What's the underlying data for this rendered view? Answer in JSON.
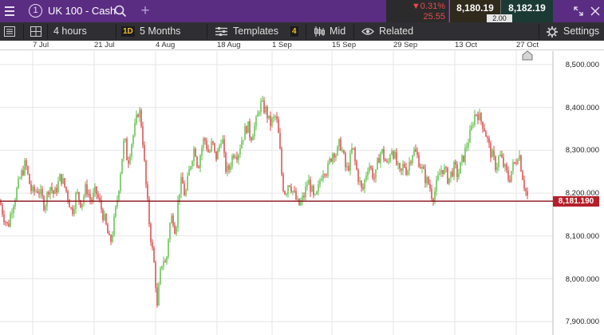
{
  "header": {
    "tab_number": "1",
    "instrument": "UK 100 - Cash",
    "change_pct": "▼0.31%",
    "change_abs": "25.55",
    "sell_price": "8,180.19",
    "buy_price": "8,182.19",
    "spread": "2.00"
  },
  "toolbar": {
    "interval": "4 hours",
    "period_badge": "1D",
    "period": "5 Months",
    "templates": "Templates",
    "templates_count": "4",
    "price_type": "Mid",
    "related": "Related",
    "settings": "Settings"
  },
  "chart_data": {
    "type": "candlestick",
    "x_labels": [
      "7 Jul",
      "21 Jul",
      "4 Aug",
      "18 Aug",
      "1 Sep",
      "15 Sep",
      "29 Sep",
      "13 Oct",
      "27 Oct"
    ],
    "y_ticks": [
      "8,500.000",
      "8,400.000",
      "8,300.000",
      "8,200.000",
      "8,100.000",
      "8,000.000",
      "7,900.000"
    ],
    "y_tick_values": [
      8500,
      8400,
      8300,
      8200,
      8100,
      8000,
      7900
    ],
    "current_price": "8,181.190",
    "current_value": 8181.19,
    "path_points": [
      [
        0,
        8180
      ],
      [
        4,
        8150
      ],
      [
        10,
        8120
      ],
      [
        14,
        8160
      ],
      [
        20,
        8200
      ],
      [
        26,
        8240
      ],
      [
        32,
        8270
      ],
      [
        36,
        8230
      ],
      [
        40,
        8200
      ],
      [
        48,
        8210
      ],
      [
        56,
        8170
      ],
      [
        62,
        8220
      ],
      [
        68,
        8195
      ],
      [
        76,
        8240
      ],
      [
        84,
        8200
      ],
      [
        90,
        8155
      ],
      [
        96,
        8200
      ],
      [
        102,
        8175
      ],
      [
        108,
        8215
      ],
      [
        114,
        8180
      ],
      [
        120,
        8205
      ],
      [
        126,
        8170
      ],
      [
        132,
        8130
      ],
      [
        138,
        8080
      ],
      [
        142,
        8120
      ],
      [
        148,
        8200
      ],
      [
        152,
        8270
      ],
      [
        156,
        8330
      ],
      [
        160,
        8270
      ],
      [
        164,
        8310
      ],
      [
        170,
        8360
      ],
      [
        174,
        8400
      ],
      [
        178,
        8350
      ],
      [
        182,
        8240
      ],
      [
        186,
        8150
      ],
      [
        190,
        8080
      ],
      [
        194,
        8020
      ],
      [
        197,
        7930
      ],
      [
        200,
        8000
      ],
      [
        204,
        8050
      ],
      [
        208,
        8030
      ],
      [
        212,
        8120
      ],
      [
        216,
        8150
      ],
      [
        220,
        8110
      ],
      [
        224,
        8200
      ],
      [
        228,
        8230
      ],
      [
        232,
        8190
      ],
      [
        236,
        8240
      ],
      [
        240,
        8280
      ],
      [
        244,
        8310
      ],
      [
        248,
        8260
      ],
      [
        252,
        8300
      ],
      [
        256,
        8330
      ],
      [
        262,
        8290
      ],
      [
        266,
        8320
      ],
      [
        270,
        8280
      ],
      [
        274,
        8300
      ],
      [
        278,
        8340
      ],
      [
        282,
        8260
      ],
      [
        286,
        8250
      ],
      [
        290,
        8280
      ],
      [
        294,
        8300
      ],
      [
        298,
        8290
      ],
      [
        302,
        8320
      ],
      [
        306,
        8340
      ],
      [
        310,
        8360
      ],
      [
        314,
        8330
      ],
      [
        318,
        8350
      ],
      [
        322,
        8370
      ],
      [
        326,
        8410
      ],
      [
        330,
        8400
      ],
      [
        334,
        8390
      ],
      [
        338,
        8360
      ],
      [
        342,
        8370
      ],
      [
        346,
        8380
      ],
      [
        350,
        8320
      ],
      [
        354,
        8220
      ],
      [
        358,
        8200
      ],
      [
        362,
        8230
      ],
      [
        366,
        8210
      ],
      [
        370,
        8190
      ],
      [
        374,
        8170
      ],
      [
        378,
        8180
      ],
      [
        382,
        8200
      ],
      [
        386,
        8230
      ],
      [
        390,
        8210
      ],
      [
        394,
        8180
      ],
      [
        398,
        8200
      ],
      [
        402,
        8240
      ],
      [
        406,
        8260
      ],
      [
        410,
        8250
      ],
      [
        414,
        8280
      ],
      [
        418,
        8300
      ],
      [
        422,
        8290
      ],
      [
        426,
        8320
      ],
      [
        430,
        8290
      ],
      [
        434,
        8250
      ],
      [
        438,
        8270
      ],
      [
        442,
        8310
      ],
      [
        446,
        8260
      ],
      [
        450,
        8230
      ],
      [
        454,
        8200
      ],
      [
        458,
        8240
      ],
      [
        462,
        8270
      ],
      [
        466,
        8250
      ],
      [
        470,
        8230
      ],
      [
        474,
        8280
      ],
      [
        478,
        8300
      ],
      [
        482,
        8280
      ],
      [
        486,
        8260
      ],
      [
        490,
        8310
      ],
      [
        494,
        8290
      ],
      [
        498,
        8260
      ],
      [
        502,
        8240
      ],
      [
        506,
        8270
      ],
      [
        510,
        8250
      ],
      [
        514,
        8280
      ],
      [
        518,
        8300
      ],
      [
        522,
        8290
      ],
      [
        526,
        8270
      ],
      [
        530,
        8250
      ],
      [
        534,
        8230
      ],
      [
        538,
        8220
      ],
      [
        542,
        8190
      ],
      [
        546,
        8210
      ],
      [
        550,
        8240
      ],
      [
        554,
        8260
      ],
      [
        558,
        8250
      ],
      [
        562,
        8230
      ],
      [
        566,
        8250
      ],
      [
        570,
        8260
      ],
      [
        574,
        8240
      ],
      [
        578,
        8270
      ],
      [
        582,
        8290
      ],
      [
        586,
        8320
      ],
      [
        590,
        8340
      ],
      [
        594,
        8380
      ],
      [
        598,
        8390
      ],
      [
        602,
        8370
      ],
      [
        606,
        8360
      ],
      [
        610,
        8330
      ],
      [
        614,
        8300
      ],
      [
        618,
        8280
      ],
      [
        622,
        8260
      ],
      [
        626,
        8290
      ],
      [
        630,
        8270
      ],
      [
        634,
        8250
      ],
      [
        638,
        8230
      ],
      [
        642,
        8260
      ],
      [
        646,
        8270
      ],
      [
        650,
        8300
      ],
      [
        654,
        8250
      ],
      [
        658,
        8210
      ],
      [
        662,
        8185
      ]
    ]
  }
}
